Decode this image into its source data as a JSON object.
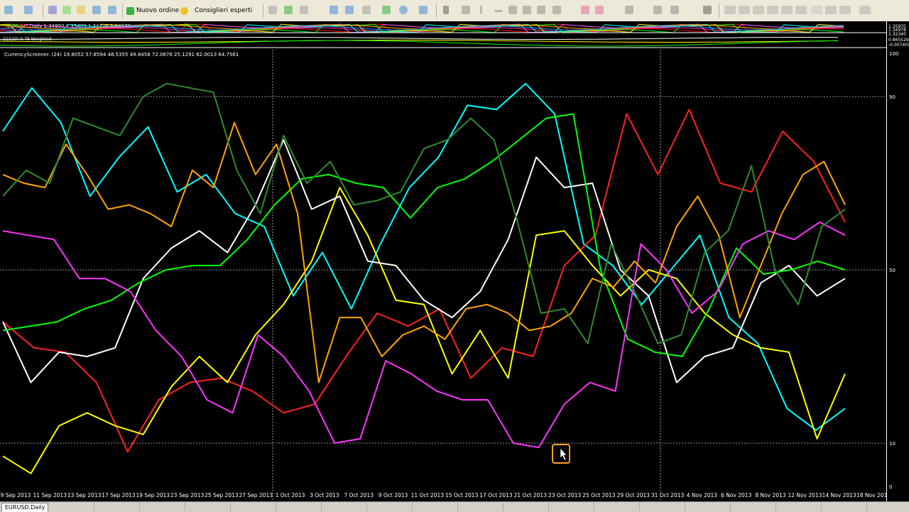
{
  "toolbar": {
    "new_order_label": "Nuovo ordine",
    "expert_advisors_label": "Consiglieri esperti"
  },
  "main_chart": {
    "label": "EURUSD,Daily  1.34950 1.35409 1.34736 1.34978",
    "price_ticks": [
      "1.35970",
      "1.34978",
      "1.32340"
    ]
  },
  "indicator_window": {
    "label": "CCI(20) 0.78 Weighted...",
    "ticks": [
      "0.865529",
      "-0.007405"
    ]
  },
  "screener": {
    "label": "CurrencyScreener. (24) 19.8052 57.8594 48.5355 49.8458 72.0676 25.1291 62.0013 64.7561",
    "level_ticks": [
      "100",
      "90",
      "50",
      "10",
      "0"
    ]
  },
  "status_tabs": [
    "EURUSD,Daily"
  ],
  "chart_data": {
    "type": "line",
    "title": "CurrencyScreener. (24)",
    "x_labels": [
      "9 Sep 2013",
      "11 Sep 2013",
      "13 Sep 2013",
      "17 Sep 2013",
      "19 Sep 2013",
      "23 Sep 2013",
      "25 Sep 2013",
      "27 Sep 2013",
      "1 Oct 2013",
      "3 Oct 2013",
      "7 Oct 2013",
      "9 Oct 2013",
      "11 Oct 2013",
      "15 Oct 2013",
      "17 Oct 2013",
      "21 Oct 2013",
      "23 Oct 2013",
      "25 Oct 2013",
      "29 Oct 2013",
      "31 Oct 2013",
      "4 Nov 2013",
      "6 Nov 2013",
      "8 Nov 2013",
      "12 Nov 2013",
      "14 Nov 2013",
      "18 Nov 2013"
    ],
    "ylim": [
      0,
      100
    ],
    "levels": [
      10,
      50,
      90
    ],
    "grid": true,
    "series": [
      {
        "color": "#00ffff",
        "values": [
          82,
          92,
          84,
          67,
          76,
          83,
          68,
          72,
          63,
          60,
          44,
          54,
          41,
          56,
          69,
          76,
          88,
          87,
          93,
          86,
          56,
          51,
          42,
          50,
          58,
          39,
          33,
          18,
          13,
          18
        ]
      },
      {
        "color": "#ff2222",
        "values": [
          38,
          32,
          31,
          24,
          8,
          20,
          24,
          25,
          22,
          17,
          19,
          30,
          40,
          37,
          41,
          25,
          32,
          30,
          51,
          58,
          86,
          72,
          87,
          70,
          68,
          82,
          75,
          61
        ]
      },
      {
        "color": "#ffff00",
        "values": [
          7,
          3,
          14,
          17,
          14,
          12,
          23,
          30,
          24,
          35,
          42,
          52,
          69,
          58,
          43,
          42,
          26,
          36,
          25,
          58,
          59,
          51,
          44,
          50,
          48,
          40,
          35,
          32,
          31,
          11,
          26
        ]
      },
      {
        "color": "#ffffff",
        "values": [
          38,
          24,
          31,
          30,
          32,
          48,
          55,
          59,
          54,
          65,
          80,
          64,
          67,
          52,
          51,
          43,
          39,
          45,
          57,
          76,
          69,
          70,
          50,
          44,
          24,
          30,
          32,
          47,
          51,
          44,
          48
        ]
      },
      {
        "color": "#00ff00",
        "values": [
          36,
          37,
          38,
          41,
          43,
          47,
          50,
          51,
          51,
          57,
          65,
          71,
          72,
          70,
          69,
          62,
          69,
          71,
          75,
          80,
          85,
          86,
          50,
          34,
          31,
          30,
          41,
          55,
          49,
          50,
          52,
          50
        ]
      },
      {
        "color": "#ff33ff",
        "values": [
          59,
          58,
          57,
          48,
          48,
          45,
          36,
          30,
          20,
          17,
          35,
          30,
          22,
          10,
          11,
          29,
          26,
          22,
          20,
          20,
          10,
          9,
          19,
          24,
          22,
          56,
          50,
          40,
          45,
          56,
          59,
          57,
          61,
          58
        ]
      },
      {
        "color": "#ffa500",
        "values": [
          72,
          70,
          69,
          79,
          72,
          64,
          65,
          63,
          60,
          73,
          69,
          84,
          72,
          79,
          63,
          24,
          39,
          39,
          30,
          35,
          37,
          34,
          41,
          42,
          40,
          36,
          37,
          40,
          48,
          46,
          52,
          47,
          60,
          67,
          58,
          39,
          51,
          63,
          72,
          75,
          65
        ]
      },
      {
        "color": "#2e8b2e",
        "values": [
          67,
          73,
          70,
          85,
          83,
          81,
          90,
          93,
          92,
          91,
          73,
          63,
          81,
          70,
          75,
          65,
          66,
          68,
          78,
          80,
          85,
          80,
          61,
          40,
          41,
          33,
          56,
          45,
          33,
          35,
          54,
          59,
          74,
          50,
          42,
          60,
          64
        ]
      }
    ]
  }
}
